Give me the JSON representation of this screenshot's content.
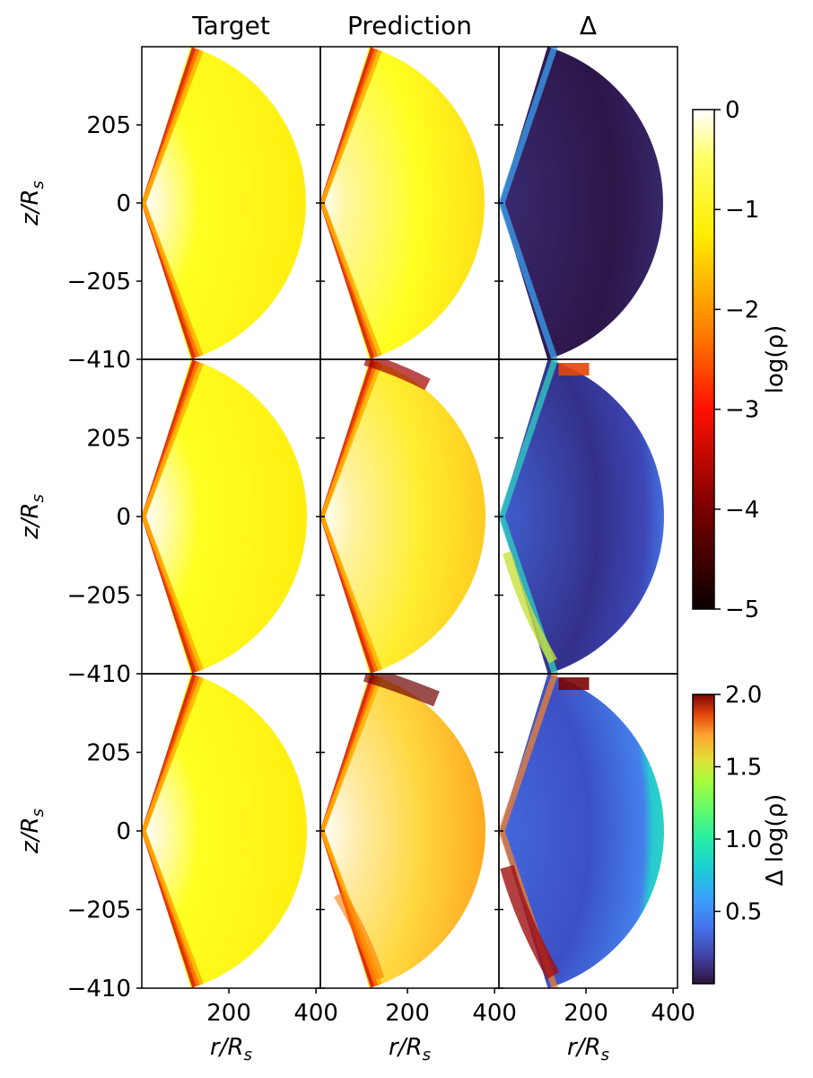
{
  "chart_data": {
    "type": "heatmap",
    "description_of_layout": "3x3 grid of half-disk density maps",
    "column_titles": [
      "Target",
      "Prediction",
      "Δ"
    ],
    "row_ylabel": "z/R_s",
    "col_xlabel": "r/R_s",
    "xticks": [
      200,
      400
    ],
    "yticks": [
      205,
      0,
      -205,
      -410
    ],
    "xlim": [
      0,
      410
    ],
    "ylim": [
      -410,
      410
    ],
    "colorbars": [
      {
        "label": "log(ρ)",
        "range": [
          -5,
          0
        ],
        "ticks": [
          0,
          -1,
          -2,
          -3,
          -4,
          -5
        ],
        "colormap": "hot"
      },
      {
        "label": "Δ log(ρ)",
        "range": [
          0,
          2.0
        ],
        "ticks": [
          2.0,
          1.5,
          1.0,
          0.5
        ],
        "colormap": "turbo"
      }
    ],
    "panels": [
      {
        "row": 1,
        "column": "Target",
        "map": "density"
      },
      {
        "row": 1,
        "column": "Prediction",
        "map": "density"
      },
      {
        "row": 1,
        "column": "Δ",
        "map": "difference",
        "mean_delta": 0.1
      },
      {
        "row": 2,
        "column": "Target",
        "map": "density"
      },
      {
        "row": 2,
        "column": "Prediction",
        "map": "density"
      },
      {
        "row": 2,
        "column": "Δ",
        "map": "difference",
        "mean_delta": 0.25
      },
      {
        "row": 3,
        "column": "Target",
        "map": "density"
      },
      {
        "row": 3,
        "column": "Prediction",
        "map": "density"
      },
      {
        "row": 3,
        "column": "Δ",
        "map": "difference",
        "mean_delta": 0.4
      }
    ]
  },
  "text": {
    "col_titles": [
      "Target",
      "Prediction",
      "Δ"
    ],
    "ylabel_main": "z/R",
    "ylabel_sub": "s",
    "xlabel_main": "r/R",
    "xlabel_sub": "s",
    "cb1_label": "log(ρ)",
    "cb2_label": "Δ log(ρ)",
    "cb1_ticks": [
      "0",
      "−1",
      "−2",
      "−3",
      "−4",
      "−5"
    ],
    "cb2_ticks": [
      "2.0",
      "1.5",
      "1.0",
      "0.5"
    ],
    "yticks": [
      "205",
      "0",
      "−205",
      "−410"
    ],
    "xticks": [
      "200",
      "400"
    ]
  }
}
